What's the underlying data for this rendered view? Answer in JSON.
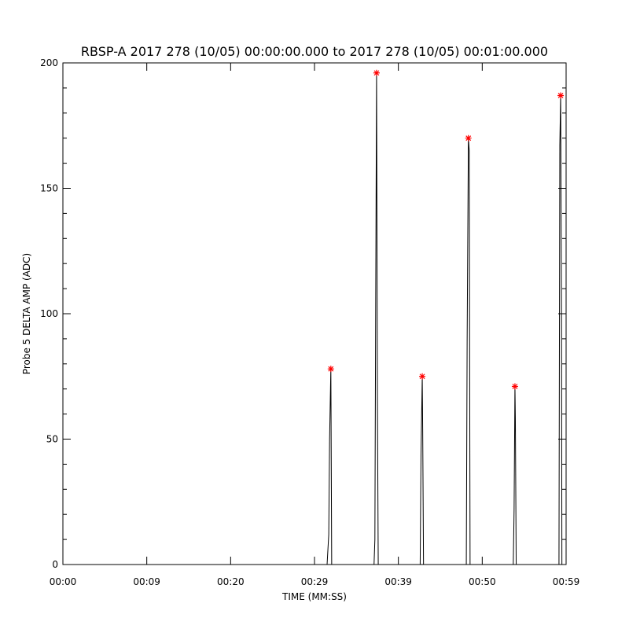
{
  "chart_data": {
    "type": "line",
    "title": "RBSP-A 2017 278 (10/05) 00:00:00.000 to 2017 278 (10/05) 00:01:00.000",
    "xlabel": "TIME (MM:SS)",
    "ylabel": "Probe 5 DELTA AMP (ADC)",
    "xlim": [
      0,
      60
    ],
    "xticks": [
      {
        "value": 0,
        "label": "00:00"
      },
      {
        "value": 10,
        "label": "00:09"
      },
      {
        "value": 20,
        "label": "00:20"
      },
      {
        "value": 30,
        "label": "00:29"
      },
      {
        "value": 40,
        "label": "00:39"
      },
      {
        "value": 50,
        "label": "00:50"
      },
      {
        "value": 60,
        "label": "00:59"
      }
    ],
    "ylim": [
      0,
      200
    ],
    "yticks": [
      0,
      50,
      100,
      150,
      200
    ],
    "yminorticks": [
      10,
      20,
      30,
      40,
      60,
      70,
      80,
      90,
      110,
      120,
      130,
      140,
      160,
      170,
      180,
      190
    ],
    "series": [
      {
        "color": "#000000",
        "marker": "none",
        "x": [
          0,
          31.5,
          31.7,
          31.8,
          31.95,
          32.05,
          37.1,
          37.2,
          37.3,
          37.4,
          37.5,
          37.6,
          42.6,
          42.7,
          42.85,
          42.9,
          43.0,
          48.1,
          48.2,
          48.35,
          48.45,
          48.55,
          53.7,
          53.8,
          53.9,
          53.95,
          54.05,
          59.15,
          59.25,
          59.35,
          59.45,
          59.5,
          60
        ],
        "values": [
          0,
          0,
          12,
          50,
          78,
          0,
          0,
          10,
          107,
          196,
          68,
          0,
          0,
          44,
          75,
          54,
          0,
          0,
          89,
          170,
          165,
          0,
          0,
          22,
          71,
          58,
          0,
          0,
          167,
          187,
          100,
          0,
          0
        ]
      },
      {
        "color": "#ff0000",
        "marker": "asterisk",
        "x": [
          31.95,
          37.4,
          42.85,
          48.35,
          53.9,
          59.35
        ],
        "values": [
          78,
          196,
          75,
          170,
          71,
          187
        ]
      }
    ]
  }
}
